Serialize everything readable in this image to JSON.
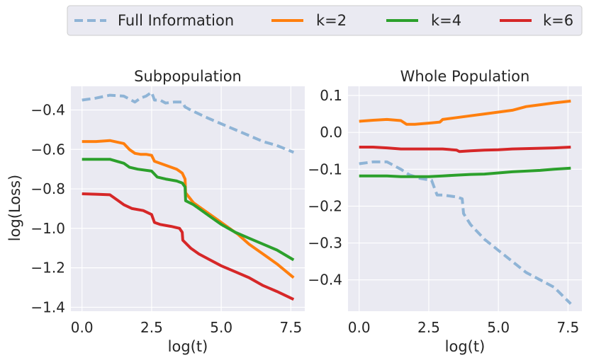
{
  "chart_data": [
    {
      "type": "line",
      "title": "Subpopulation",
      "xlabel": "log(t)",
      "ylabel": "log(Loss)",
      "xlim": [
        -0.4,
        8.0
      ],
      "ylim": [
        -1.42,
        -0.28
      ],
      "xticks": [
        0.0,
        2.5,
        5.0,
        7.5
      ],
      "xtick_labels": [
        "0.0",
        "2.5",
        "5.0",
        "7.5"
      ],
      "yticks": [
        -0.4,
        -0.6,
        -0.8,
        -1.0,
        -1.2,
        -1.4
      ],
      "ytick_labels": [
        "−0.4",
        "−0.6",
        "−0.8",
        "−1.0",
        "−1.2",
        "−1.4"
      ],
      "grid": true,
      "series": [
        {
          "name": "Full Information",
          "x": [
            0.0,
            0.5,
            1.0,
            1.5,
            1.7,
            1.9,
            2.1,
            2.3,
            2.5,
            2.6,
            2.8,
            3.0,
            3.3,
            3.6,
            3.7,
            3.9,
            4.2,
            4.5,
            5.0,
            5.5,
            6.0,
            6.5,
            7.0,
            7.6
          ],
          "y": [
            -0.35,
            -0.34,
            -0.325,
            -0.33,
            -0.345,
            -0.36,
            -0.34,
            -0.33,
            -0.31,
            -0.35,
            -0.35,
            -0.365,
            -0.36,
            -0.36,
            -0.385,
            -0.4,
            -0.42,
            -0.44,
            -0.47,
            -0.5,
            -0.53,
            -0.56,
            -0.58,
            -0.615
          ]
        },
        {
          "name": "k=2",
          "x": [
            0.0,
            0.5,
            1.0,
            1.5,
            1.7,
            1.9,
            2.1,
            2.3,
            2.5,
            2.6,
            3.0,
            3.4,
            3.6,
            3.7,
            3.72,
            4.0,
            4.4,
            4.8,
            5.2,
            5.6,
            6.0,
            6.5,
            7.0,
            7.6
          ],
          "y": [
            -0.56,
            -0.56,
            -0.555,
            -0.57,
            -0.6,
            -0.62,
            -0.625,
            -0.625,
            -0.63,
            -0.66,
            -0.68,
            -0.7,
            -0.72,
            -0.75,
            -0.82,
            -0.87,
            -0.91,
            -0.95,
            -0.99,
            -1.03,
            -1.08,
            -1.13,
            -1.18,
            -1.25
          ]
        },
        {
          "name": "k=4",
          "x": [
            0.0,
            0.5,
            1.0,
            1.5,
            1.7,
            2.0,
            2.5,
            2.7,
            3.0,
            3.4,
            3.6,
            3.7,
            3.72,
            4.0,
            4.2,
            4.6,
            5.0,
            5.5,
            6.0,
            6.5,
            7.0,
            7.6
          ],
          "y": [
            -0.65,
            -0.65,
            -0.65,
            -0.67,
            -0.69,
            -0.7,
            -0.71,
            -0.74,
            -0.75,
            -0.76,
            -0.77,
            -0.79,
            -0.86,
            -0.88,
            -0.9,
            -0.94,
            -0.98,
            -1.02,
            -1.05,
            -1.08,
            -1.11,
            -1.16
          ]
        },
        {
          "name": "k=6",
          "x": [
            0.0,
            0.5,
            1.0,
            1.3,
            1.5,
            1.8,
            2.2,
            2.5,
            2.6,
            2.8,
            3.2,
            3.5,
            3.6,
            3.62,
            3.9,
            4.2,
            4.6,
            5.0,
            5.5,
            6.0,
            6.5,
            7.0,
            7.6
          ],
          "y": [
            -0.825,
            -0.827,
            -0.83,
            -0.86,
            -0.88,
            -0.9,
            -0.91,
            -0.93,
            -0.97,
            -0.98,
            -0.99,
            -1.0,
            -1.02,
            -1.06,
            -1.1,
            -1.13,
            -1.16,
            -1.19,
            -1.22,
            -1.25,
            -1.29,
            -1.32,
            -1.36
          ]
        }
      ]
    },
    {
      "type": "line",
      "title": "Whole Population",
      "xlabel": "log(t)",
      "ylabel": "",
      "xlim": [
        -0.4,
        8.0
      ],
      "ylim": [
        -0.485,
        0.125
      ],
      "xticks": [
        0.0,
        2.5,
        5.0,
        7.5
      ],
      "xtick_labels": [
        "0.0",
        "2.5",
        "5.0",
        "7.5"
      ],
      "yticks": [
        0.1,
        0.0,
        -0.1,
        -0.2,
        -0.3,
        -0.4
      ],
      "ytick_labels": [
        "0.1",
        "0.0",
        "−0.1",
        "−0.2",
        "−0.3",
        "−0.4"
      ],
      "grid": true,
      "series": [
        {
          "name": "Full Information",
          "x": [
            0.0,
            0.5,
            1.0,
            1.5,
            1.8,
            2.2,
            2.6,
            2.8,
            3.0,
            3.5,
            3.7,
            3.75,
            4.0,
            4.5,
            5.0,
            5.5,
            6.0,
            6.5,
            7.0,
            7.6
          ],
          "y": [
            -0.085,
            -0.08,
            -0.08,
            -0.1,
            -0.115,
            -0.125,
            -0.13,
            -0.17,
            -0.17,
            -0.175,
            -0.18,
            -0.22,
            -0.25,
            -0.29,
            -0.32,
            -0.35,
            -0.38,
            -0.4,
            -0.42,
            -0.465
          ]
        },
        {
          "name": "k=2",
          "x": [
            0.0,
            0.5,
            1.0,
            1.5,
            1.7,
            2.0,
            2.5,
            2.9,
            3.0,
            3.5,
            4.0,
            4.5,
            5.0,
            5.5,
            6.0,
            6.5,
            7.0,
            7.6
          ],
          "y": [
            0.03,
            0.033,
            0.035,
            0.032,
            0.022,
            0.022,
            0.025,
            0.028,
            0.035,
            0.04,
            0.045,
            0.05,
            0.055,
            0.06,
            0.07,
            0.075,
            0.08,
            0.085
          ]
        },
        {
          "name": "k=4",
          "x": [
            0.0,
            0.5,
            1.0,
            1.5,
            2.0,
            2.5,
            3.0,
            3.5,
            4.0,
            4.5,
            5.0,
            5.5,
            6.0,
            6.5,
            7.0,
            7.6
          ],
          "y": [
            -0.118,
            -0.118,
            -0.118,
            -0.12,
            -0.12,
            -0.12,
            -0.118,
            -0.116,
            -0.114,
            -0.113,
            -0.11,
            -0.107,
            -0.105,
            -0.103,
            -0.1,
            -0.097
          ]
        },
        {
          "name": "k=6",
          "x": [
            0.0,
            0.5,
            1.0,
            1.5,
            2.0,
            2.5,
            3.0,
            3.5,
            3.6,
            4.0,
            4.5,
            5.0,
            5.5,
            6.0,
            6.5,
            7.0,
            7.6
          ],
          "y": [
            -0.04,
            -0.04,
            -0.042,
            -0.045,
            -0.045,
            -0.045,
            -0.045,
            -0.048,
            -0.052,
            -0.05,
            -0.048,
            -0.047,
            -0.045,
            -0.044,
            -0.043,
            -0.042,
            -0.04
          ]
        }
      ]
    }
  ],
  "legend": {
    "position": "top-center",
    "entries": [
      {
        "label": "Full Information",
        "color": "#8fb4d6",
        "dashed": true
      },
      {
        "label": "k=2",
        "color": "#ff7f0e",
        "dashed": false
      },
      {
        "label": "k=4",
        "color": "#2ca02c",
        "dashed": false
      },
      {
        "label": "k=6",
        "color": "#d62728",
        "dashed": false
      }
    ]
  },
  "colors": {
    "panel_bg": "#eaeaf2",
    "grid": "#ffffff",
    "text": "#262626"
  }
}
